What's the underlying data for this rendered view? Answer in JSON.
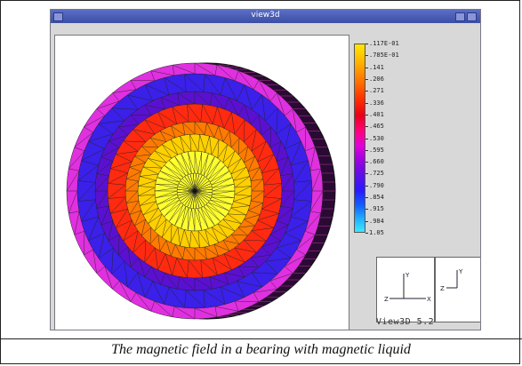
{
  "window": {
    "title": "view3d",
    "version_label": "View3D 5.2"
  },
  "caption": "The magnetic field in a bearing with magnetic liquid",
  "legend": {
    "values": [
      ".117E-01",
      ".785E-01",
      ".141",
      ".206",
      ".271",
      ".336",
      ".401",
      ".465",
      ".530",
      ".595",
      ".660",
      ".725",
      ".790",
      ".854",
      ".915",
      ".984",
      "1.05"
    ]
  },
  "axes": {
    "panel1": {
      "up": "Y",
      "right": "X",
      "left": "Z"
    },
    "panel2": {
      "up": "Y",
      "left": "Z"
    }
  },
  "colors": {
    "titlebar": "#4a5cb6",
    "mesh_center": "#ffff30",
    "mesh_mid": "#ff3a10",
    "mesh_outer": "#3a18e8",
    "mesh_rim": "#ff20d0"
  },
  "icons": {
    "window_menu": "window-menu-icon",
    "maximize": "maximize-icon"
  }
}
